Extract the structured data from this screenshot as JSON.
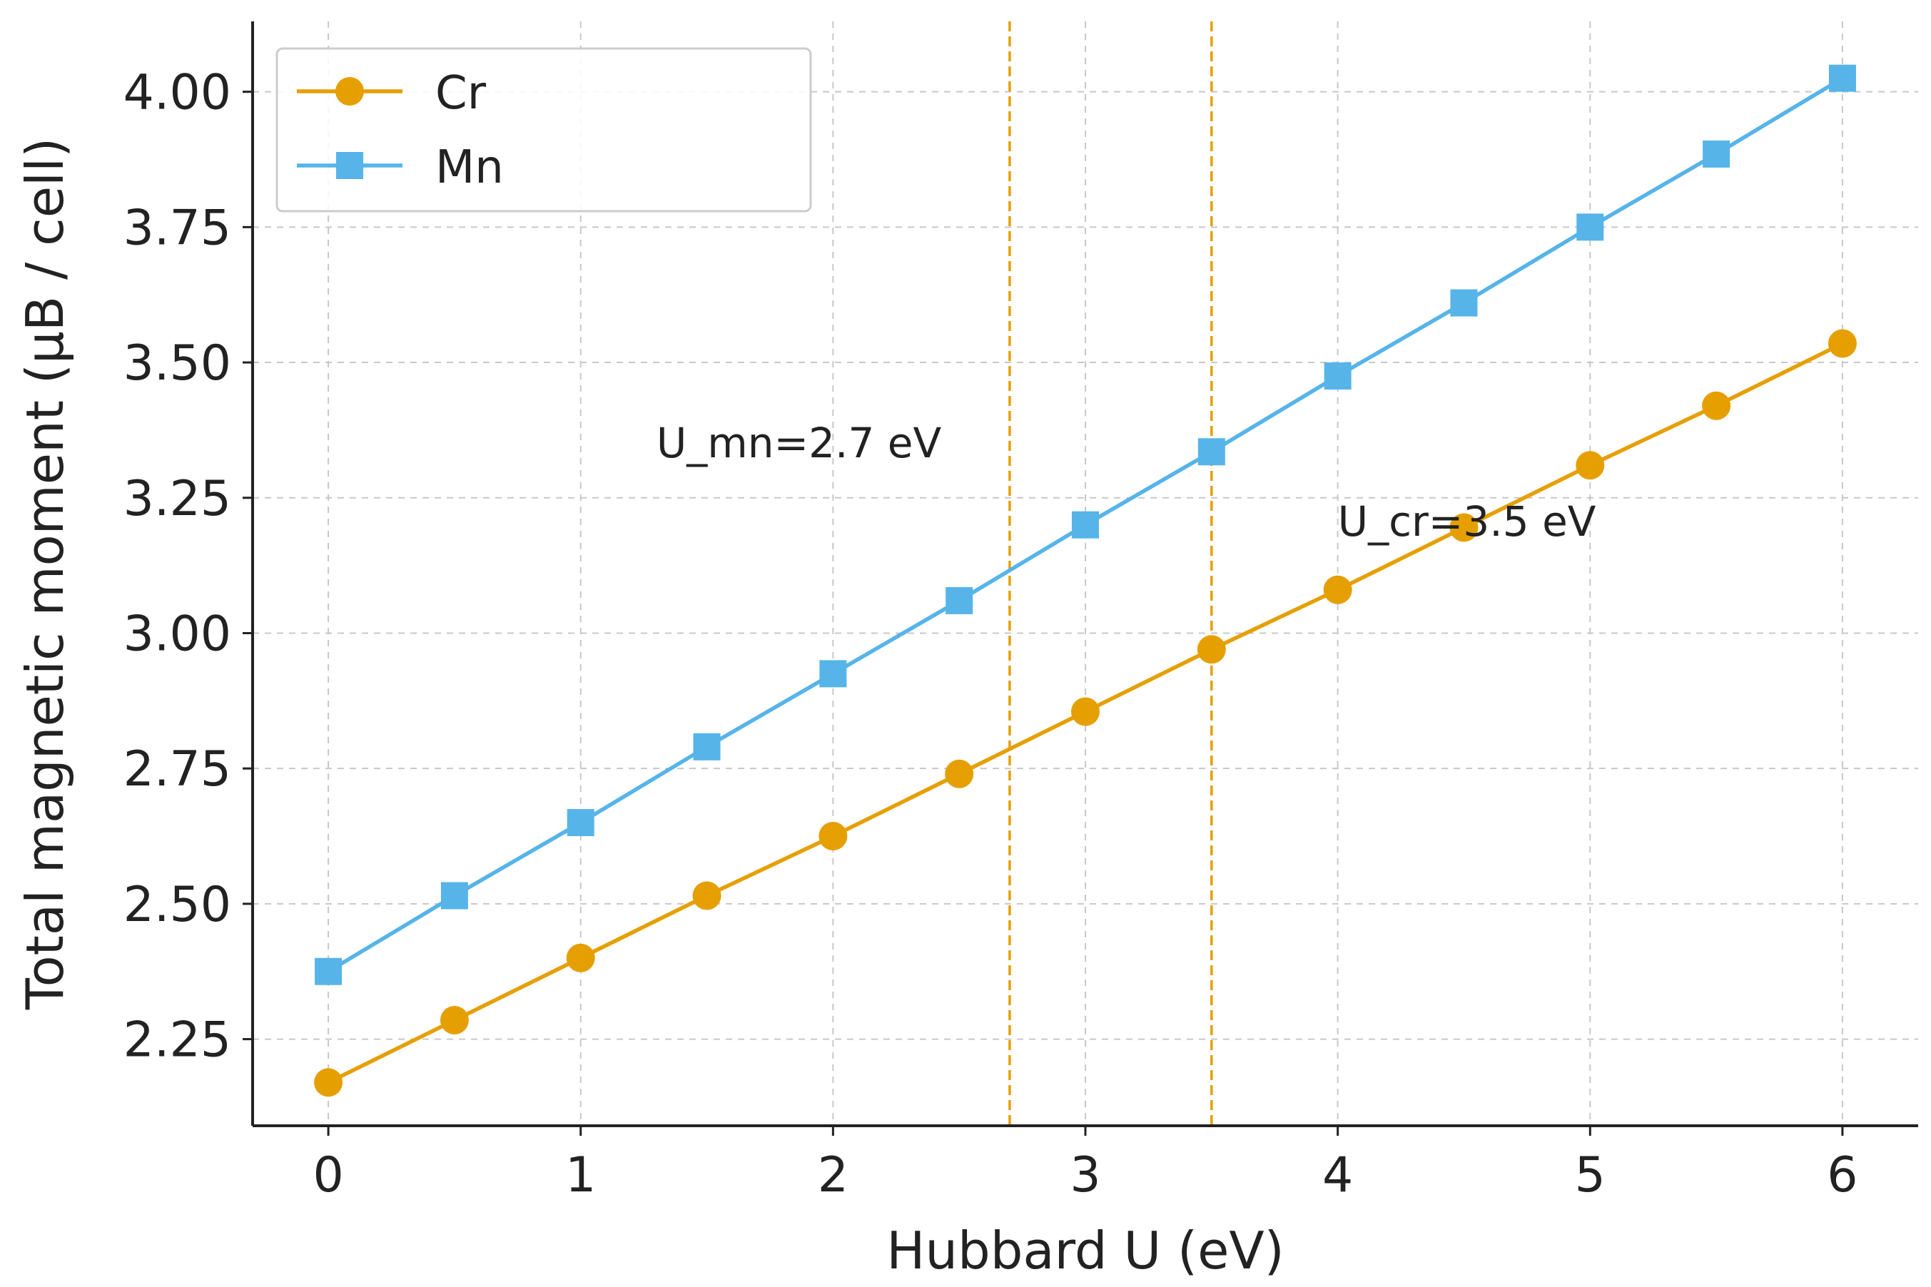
{
  "chart_data": {
    "type": "line",
    "title": "",
    "xlabel": "Hubbard U (eV)",
    "ylabel": "Total magnetic moment (μB / cell)",
    "xlim": [
      -0.3,
      6.3
    ],
    "ylim": [
      2.09,
      4.13
    ],
    "xticks": [
      0,
      1,
      2,
      3,
      4,
      5,
      6
    ],
    "yticks": [
      2.25,
      2.5,
      2.75,
      3.0,
      3.25,
      3.5,
      3.75,
      4.0
    ],
    "grid": true,
    "legend_position": "top-left",
    "x": [
      0,
      0.5,
      1,
      1.5,
      2,
      2.5,
      3,
      3.5,
      4,
      4.5,
      5,
      5.5,
      6
    ],
    "series": [
      {
        "name": "Cr",
        "color": "#E69F00",
        "marker": "circle",
        "values": [
          2.17,
          2.285,
          2.4,
          2.515,
          2.625,
          2.74,
          2.855,
          2.97,
          3.08,
          3.195,
          3.31,
          3.42,
          3.535
        ]
      },
      {
        "name": "Mn",
        "color": "#56B4E9",
        "marker": "square",
        "values": [
          2.375,
          2.515,
          2.65,
          2.79,
          2.925,
          3.06,
          3.2,
          3.335,
          3.475,
          3.61,
          3.75,
          3.885,
          4.025
        ]
      }
    ],
    "vlines": [
      {
        "x": 2.7,
        "color": "#E69F00",
        "style": "dashed"
      },
      {
        "x": 3.5,
        "color": "#E69F00",
        "style": "dashed"
      }
    ],
    "annotations": [
      {
        "text": "U_mn=2.7 eV",
        "x": 1.3,
        "y": 3.325
      },
      {
        "text": "U_cr=3.5 eV",
        "x": 4.0,
        "y": 3.18
      }
    ]
  }
}
